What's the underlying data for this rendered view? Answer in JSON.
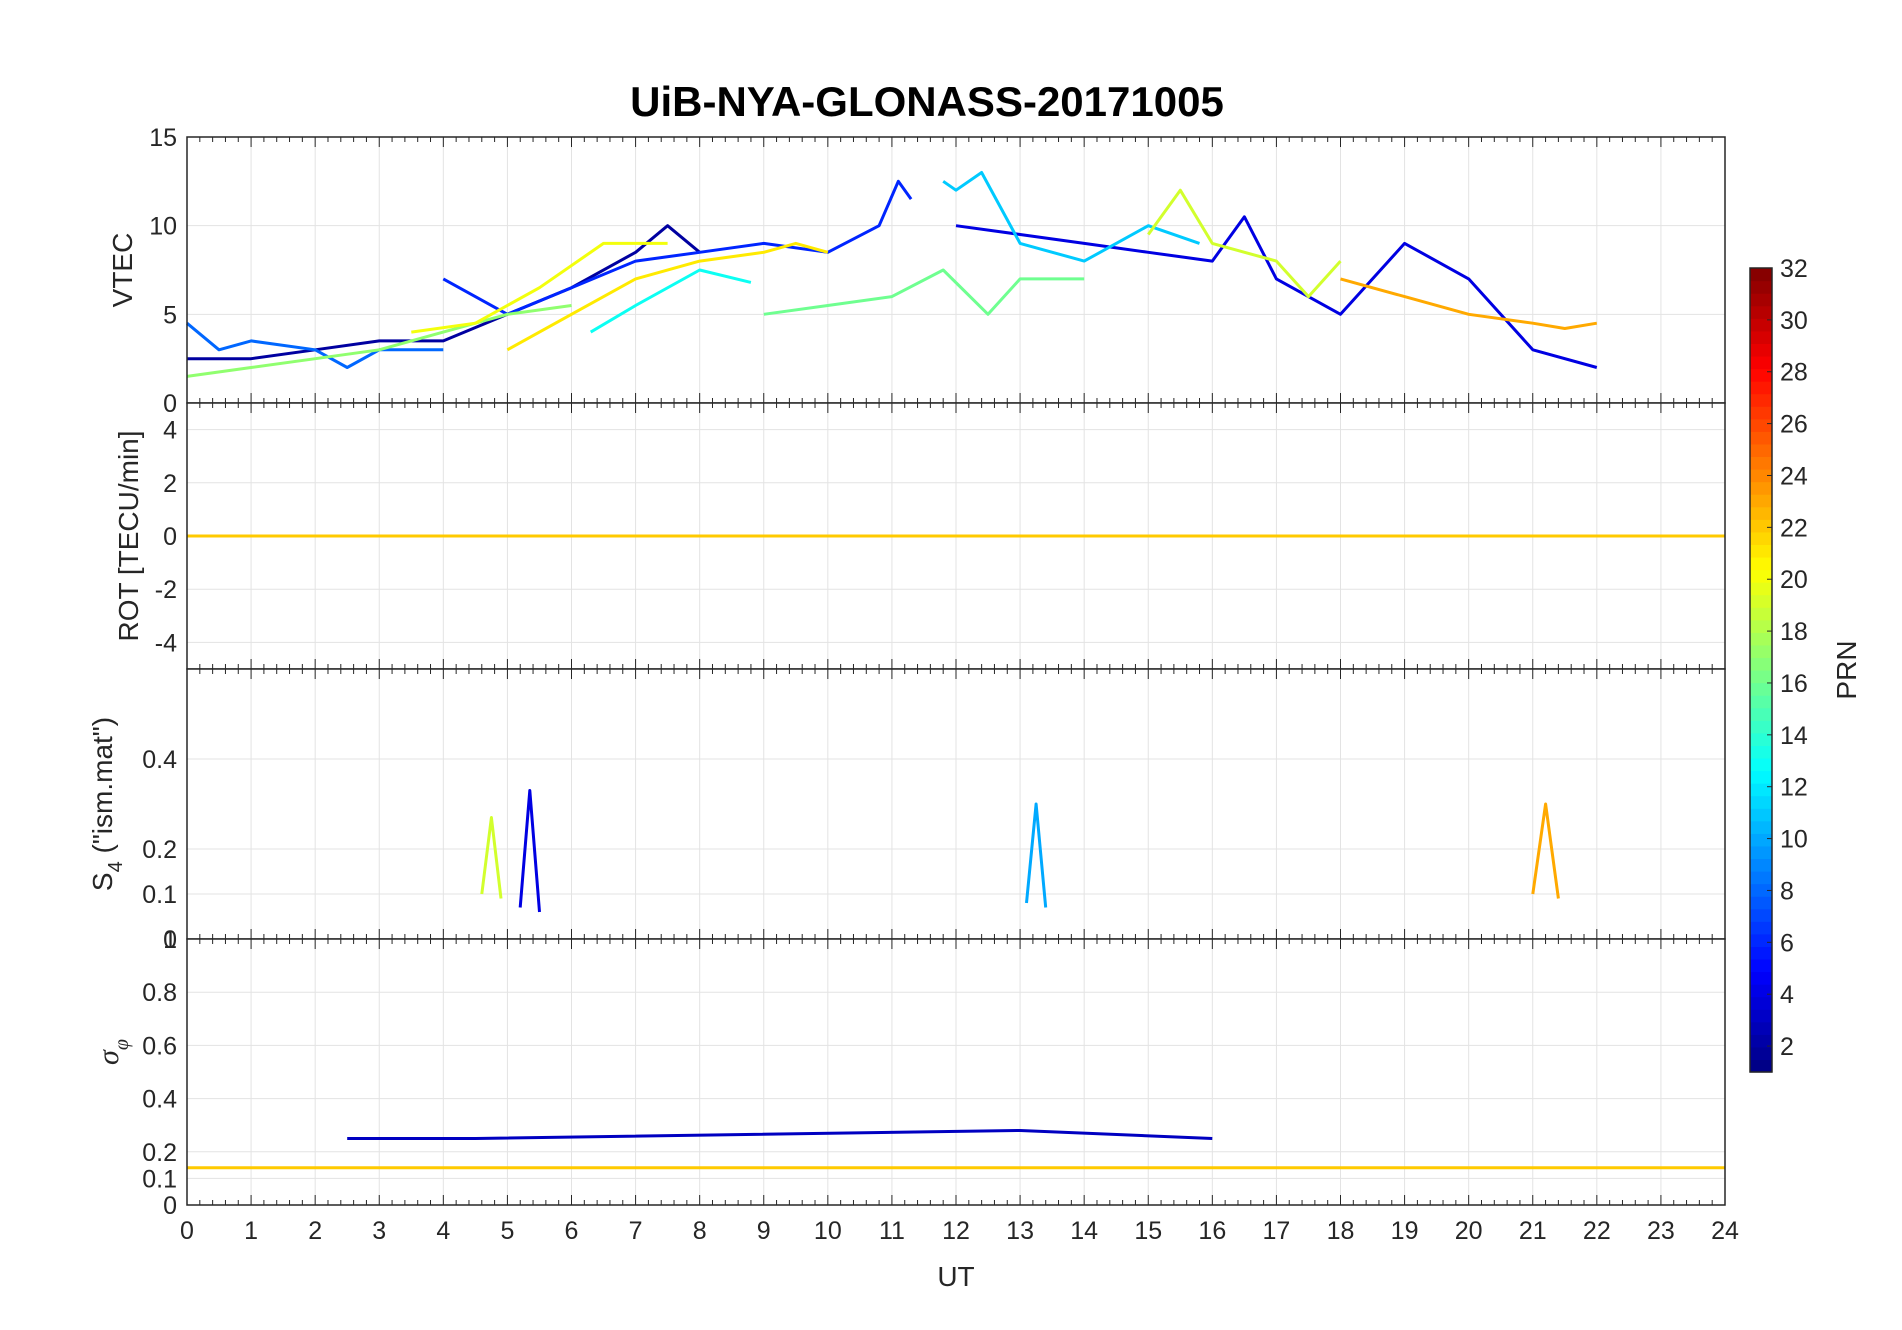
{
  "chart_data": {
    "type": "line",
    "title": "UiB-NYA-GLONASS-20171005",
    "xlabel": "UT",
    "xlim": [
      0,
      24
    ],
    "xticks": [
      "0",
      "1",
      "2",
      "3",
      "4",
      "5",
      "6",
      "7",
      "8",
      "9",
      "10",
      "11",
      "12",
      "13",
      "14",
      "15",
      "16",
      "17",
      "18",
      "19",
      "20",
      "21",
      "22",
      "23",
      "24"
    ],
    "colorbar": {
      "label": "PRN",
      "range": [
        1,
        32
      ],
      "ticks": [
        "2",
        "4",
        "6",
        "8",
        "10",
        "12",
        "14",
        "16",
        "18",
        "20",
        "22",
        "24",
        "26",
        "28",
        "30",
        "32"
      ],
      "colormap": "jet"
    },
    "panels": [
      {
        "ylabel": "VTEC",
        "ylim": [
          0,
          15
        ],
        "yticks": [
          "0",
          "5",
          "10",
          "15"
        ],
        "series": [
          {
            "prn": 2,
            "x": [
              0,
              1,
              2,
              3,
              4,
              5,
              6,
              7,
              7.5,
              8
            ],
            "y": [
              2.5,
              2.5,
              3,
              3.5,
              3.5,
              5,
              6.5,
              8.5,
              10,
              8.5
            ]
          },
          {
            "prn": 4,
            "x": [
              12,
              13,
              14,
              15,
              16,
              16.5,
              17,
              18,
              19,
              20,
              21,
              22
            ],
            "y": [
              10,
              9.5,
              9,
              8.5,
              8,
              10.5,
              7,
              5,
              9,
              7,
              3,
              2
            ]
          },
          {
            "prn": 6,
            "x": [
              4,
              5,
              6,
              7,
              8,
              9,
              10,
              10.8,
              11.1,
              11.3
            ],
            "y": [
              7,
              5,
              6.5,
              8,
              8.5,
              9,
              8.5,
              10,
              12.5,
              11.5
            ]
          },
          {
            "prn": 8,
            "x": [
              0,
              0.5,
              1,
              2,
              2.5,
              3,
              4
            ],
            "y": [
              4.5,
              3,
              3.5,
              3,
              2,
              3,
              3
            ]
          },
          {
            "prn": 11,
            "x": [
              11.8,
              12,
              12.4,
              13,
              14,
              15,
              15.8
            ],
            "y": [
              12.5,
              12,
              13,
              9,
              8,
              10,
              9
            ]
          },
          {
            "prn": 13,
            "x": [
              6.3,
              7,
              8,
              8.8
            ],
            "y": [
              4,
              5.5,
              7.5,
              6.8
            ]
          },
          {
            "prn": 16,
            "x": [
              9,
              10,
              11,
              11.8,
              12.5,
              13,
              14
            ],
            "y": [
              5,
              5.5,
              6,
              7.5,
              5,
              7,
              7
            ]
          },
          {
            "prn": 17,
            "x": [
              0,
              1,
              2,
              3,
              4,
              5,
              6
            ],
            "y": [
              1.5,
              2,
              2.5,
              3,
              4,
              5,
              5.5
            ]
          },
          {
            "prn": 19,
            "x": [
              15,
              15.5,
              16,
              17,
              17.5,
              18
            ],
            "y": [
              9.5,
              12,
              9,
              8,
              6,
              8
            ]
          },
          {
            "prn": 20,
            "x": [
              3.5,
              4.5,
              5.5,
              6.5,
              7.5
            ],
            "y": [
              4,
              4.5,
              6.5,
              9,
              9
            ]
          },
          {
            "prn": 21,
            "x": [
              5,
              6,
              7,
              8,
              9,
              9.5,
              10
            ],
            "y": [
              3,
              5,
              7,
              8,
              8.5,
              9,
              8.5
            ]
          },
          {
            "prn": 23,
            "x": [
              18,
              19,
              20,
              21,
              21.5,
              22
            ],
            "y": [
              7,
              6,
              5,
              4.5,
              4.2,
              4.5
            ]
          }
        ]
      },
      {
        "ylabel": "ROT [TECU/min]",
        "ylim": [
          -5,
          5
        ],
        "yticks": [
          "-4",
          "-2",
          "0",
          "2",
          "4"
        ],
        "series": [
          {
            "prn": 3,
            "x": [
              0,
              2,
              4,
              6,
              8,
              10,
              12,
              14,
              16,
              18,
              20,
              22,
              24
            ],
            "y": [
              0,
              0,
              0,
              0,
              0,
              0,
              0,
              0,
              0,
              0,
              0,
              0,
              0
            ]
          },
          {
            "prn": 22,
            "x": [
              0,
              2,
              4,
              6,
              8,
              10,
              12,
              14,
              16,
              18,
              20,
              22,
              24
            ],
            "y": [
              0,
              0,
              0,
              0,
              0,
              0,
              0,
              0,
              0,
              0,
              0,
              0,
              0
            ]
          }
        ]
      },
      {
        "ylabel": "S4 (\"ism.mat\")",
        "ylabel_main": "S",
        "ylabel_sub": "4",
        "ylabel_rest": " (\"ism.mat\")",
        "ylim": [
          0,
          0.6
        ],
        "yticks": [
          "0",
          "0.1",
          "0.2",
          "0.4"
        ],
        "series": [
          {
            "prn": 4,
            "x": [
              5.2,
              5.35,
              5.5
            ],
            "y": [
              0.07,
              0.33,
              0.06
            ]
          },
          {
            "prn": 10,
            "x": [
              13.1,
              13.25,
              13.4
            ],
            "y": [
              0.08,
              0.3,
              0.07
            ]
          },
          {
            "prn": 23,
            "x": [
              21,
              21.2,
              21.4
            ],
            "y": [
              0.1,
              0.3,
              0.09
            ]
          },
          {
            "prn": 19,
            "x": [
              4.6,
              4.75,
              4.9
            ],
            "y": [
              0.1,
              0.27,
              0.09
            ]
          }
        ]
      },
      {
        "ylabel": "σφ",
        "ylabel_main": "σ",
        "ylabel_sub": "φ",
        "ylim": [
          0,
          1
        ],
        "yticks": [
          "0",
          "0.1",
          "0.2",
          "0.4",
          "0.6",
          "0.8",
          "1"
        ],
        "series": [
          {
            "prn": 3,
            "x": [
              2.5,
              4.5,
              13,
              16
            ],
            "y": [
              0.25,
              0.25,
              0.28,
              0.25
            ]
          },
          {
            "prn": 22,
            "x": [
              0,
              24
            ],
            "y": [
              0.14,
              0.14
            ]
          }
        ]
      }
    ]
  }
}
